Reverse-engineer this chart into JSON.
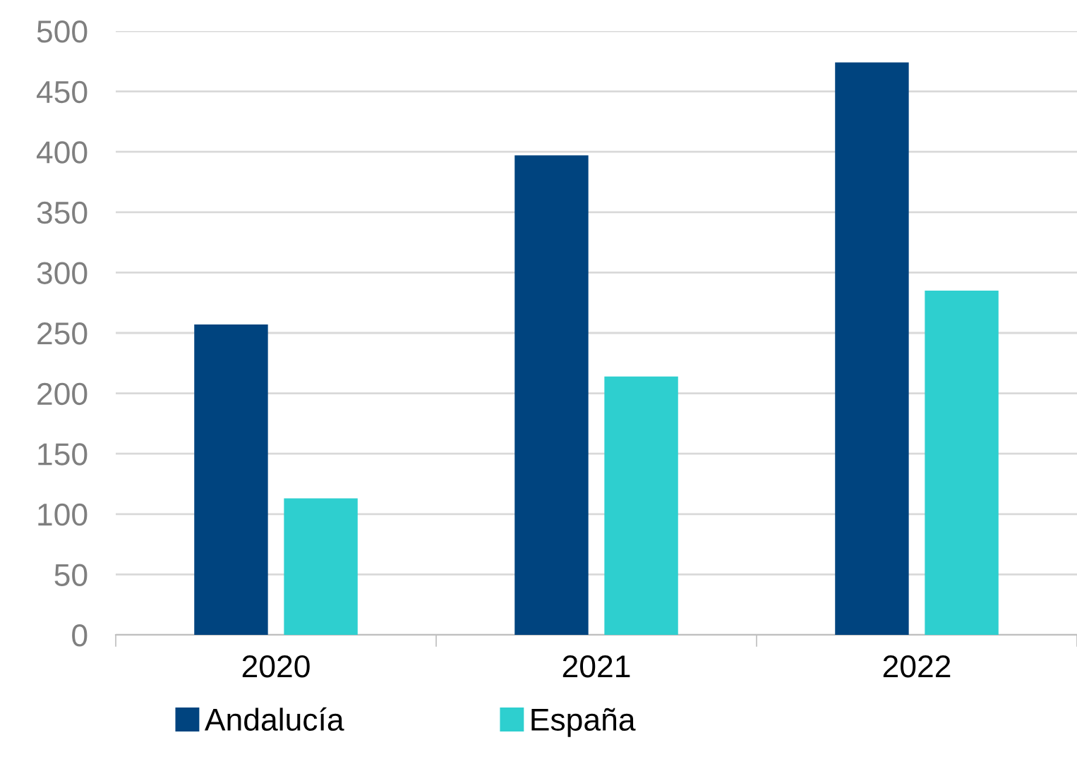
{
  "chart_data": {
    "type": "bar",
    "categories": [
      "2020",
      "2021",
      "2022"
    ],
    "series": [
      {
        "name": "Andalucía",
        "color": "#00447f",
        "values": [
          257,
          397,
          474
        ]
      },
      {
        "name": "España",
        "color": "#2ecfcf",
        "values": [
          113,
          214,
          285
        ]
      }
    ],
    "ylim": [
      0,
      500
    ],
    "yticks": [
      0,
      50,
      100,
      150,
      200,
      250,
      300,
      350,
      400,
      450,
      500
    ],
    "grid": "y",
    "legend": "bottom"
  }
}
